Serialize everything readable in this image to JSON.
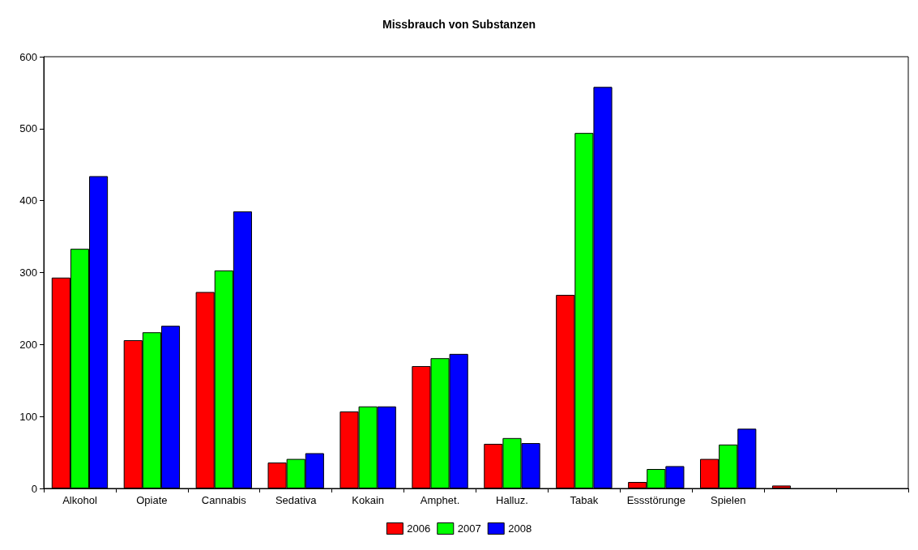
{
  "chart_data": {
    "type": "bar",
    "title": "Missbrauch von Substanzen",
    "categories": [
      "Alkohol",
      "Opiate",
      "Cannabis",
      "Sedativa",
      "Kokain",
      "Amphet.",
      "Halluz.",
      "Tabak",
      "Essstörunge",
      "Spielen",
      null,
      null
    ],
    "series": [
      {
        "name": "2006",
        "color": "#ff0000",
        "values": [
          293,
          206,
          273,
          36,
          107,
          170,
          62,
          269,
          9,
          41,
          4,
          null
        ]
      },
      {
        "name": "2007",
        "color": "#00ff00",
        "values": [
          333,
          217,
          303,
          41,
          114,
          181,
          70,
          494,
          27,
          61,
          null,
          null
        ]
      },
      {
        "name": "2008",
        "color": "#0000ff",
        "values": [
          434,
          226,
          385,
          49,
          114,
          187,
          63,
          558,
          31,
          83,
          null,
          null
        ]
      }
    ],
    "ylim": [
      0,
      600
    ],
    "yticks": [
      0,
      100,
      200,
      300,
      400,
      500,
      600
    ],
    "grid": false,
    "legend": "bottom"
  }
}
